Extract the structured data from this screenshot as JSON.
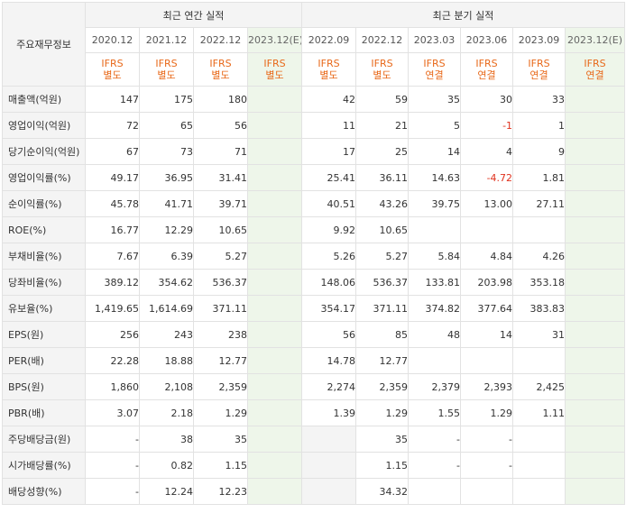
{
  "header": {
    "row_label": "주요재무정보",
    "annual_title": "최근 연간 실적",
    "quarter_title": "최근 분기 실적"
  },
  "annual_periods": [
    "2020.12",
    "2021.12",
    "2022.12",
    "2023.12(E)"
  ],
  "quarter_periods": [
    "2022.09",
    "2022.12",
    "2023.03",
    "2023.06",
    "2023.09",
    "2023.12(E)"
  ],
  "annual_ifrs": [
    {
      "line1": "IFRS",
      "line2": "별도"
    },
    {
      "line1": "IFRS",
      "line2": "별도"
    },
    {
      "line1": "IFRS",
      "line2": "별도"
    },
    {
      "line1": "IFRS",
      "line2": "별도"
    }
  ],
  "quarter_ifrs": [
    {
      "line1": "IFRS",
      "line2": "별도"
    },
    {
      "line1": "IFRS",
      "line2": "별도"
    },
    {
      "line1": "IFRS",
      "line2": "연결"
    },
    {
      "line1": "IFRS",
      "line2": "연결"
    },
    {
      "line1": "IFRS",
      "line2": "연결"
    },
    {
      "line1": "IFRS",
      "line2": "연결"
    }
  ],
  "rows": [
    {
      "label": "매출액(억원)",
      "annual": [
        "147",
        "175",
        "180",
        ""
      ],
      "quarter": [
        "42",
        "59",
        "35",
        "30",
        "33",
        ""
      ]
    },
    {
      "label": "영업이익(억원)",
      "annual": [
        "72",
        "65",
        "56",
        ""
      ],
      "quarter": [
        "11",
        "21",
        "5",
        "-1",
        "1",
        ""
      ]
    },
    {
      "label": "당기순이익(억원)",
      "annual": [
        "67",
        "73",
        "71",
        ""
      ],
      "quarter": [
        "17",
        "25",
        "14",
        "4",
        "9",
        ""
      ]
    },
    {
      "label": "영업이익률(%)",
      "annual": [
        "49.17",
        "36.95",
        "31.41",
        ""
      ],
      "quarter": [
        "25.41",
        "36.11",
        "14.63",
        "-4.72",
        "1.81",
        ""
      ]
    },
    {
      "label": "순이익률(%)",
      "annual": [
        "45.78",
        "41.71",
        "39.71",
        ""
      ],
      "quarter": [
        "40.51",
        "43.26",
        "39.75",
        "13.00",
        "27.11",
        ""
      ]
    },
    {
      "label": "ROE(%)",
      "annual": [
        "16.77",
        "12.29",
        "10.65",
        ""
      ],
      "quarter": [
        "9.92",
        "10.65",
        "",
        "",
        "",
        ""
      ]
    },
    {
      "label": "부채비율(%)",
      "annual": [
        "7.67",
        "6.39",
        "5.27",
        ""
      ],
      "quarter": [
        "5.26",
        "5.27",
        "5.84",
        "4.84",
        "4.26",
        ""
      ]
    },
    {
      "label": "당좌비율(%)",
      "annual": [
        "389.12",
        "354.62",
        "536.37",
        ""
      ],
      "quarter": [
        "148.06",
        "536.37",
        "133.81",
        "203.98",
        "353.18",
        ""
      ]
    },
    {
      "label": "유보율(%)",
      "annual": [
        "1,419.65",
        "1,614.69",
        "371.11",
        ""
      ],
      "quarter": [
        "354.17",
        "371.11",
        "374.82",
        "377.64",
        "383.83",
        ""
      ]
    },
    {
      "label": "EPS(원)",
      "annual": [
        "256",
        "243",
        "238",
        ""
      ],
      "quarter": [
        "56",
        "85",
        "48",
        "14",
        "31",
        ""
      ]
    },
    {
      "label": "PER(배)",
      "annual": [
        "22.28",
        "18.88",
        "12.77",
        ""
      ],
      "quarter": [
        "14.78",
        "12.77",
        "",
        "",
        "",
        ""
      ]
    },
    {
      "label": "BPS(원)",
      "annual": [
        "1,860",
        "2,108",
        "2,359",
        ""
      ],
      "quarter": [
        "2,274",
        "2,359",
        "2,379",
        "2,393",
        "2,425",
        ""
      ]
    },
    {
      "label": "PBR(배)",
      "annual": [
        "3.07",
        "2.18",
        "1.29",
        ""
      ],
      "quarter": [
        "1.39",
        "1.29",
        "1.55",
        "1.29",
        "1.11",
        ""
      ]
    },
    {
      "label": "주당배당금(원)",
      "annual": [
        "-",
        "38",
        "35",
        ""
      ],
      "quarter": [
        "",
        "35",
        "-",
        "-",
        "",
        ""
      ]
    },
    {
      "label": "시가배당률(%)",
      "annual": [
        "-",
        "0.82",
        "1.15",
        ""
      ],
      "quarter": [
        "",
        "1.15",
        "-",
        "-",
        "",
        ""
      ]
    },
    {
      "label": "배당성향(%)",
      "annual": [
        "-",
        "12.24",
        "12.23",
        ""
      ],
      "quarter": [
        "",
        "34.32",
        "",
        "",
        "",
        ""
      ]
    }
  ]
}
